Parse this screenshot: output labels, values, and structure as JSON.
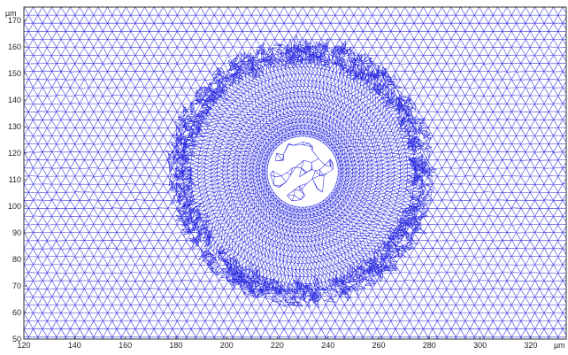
{
  "plot": {
    "unit_label_y": "µm",
    "unit_label_x": "µm",
    "x_ticks": [
      "120",
      "140",
      "160",
      "180",
      "200",
      "220",
      "240",
      "260",
      "280",
      "300",
      "320"
    ],
    "y_ticks": [
      "50",
      "60",
      "70",
      "80",
      "90",
      "100",
      "110",
      "120",
      "130",
      "140",
      "150",
      "160",
      "170"
    ],
    "x_range": [
      120,
      334
    ],
    "y_range": [
      50,
      175
    ],
    "mesh_color": "#2a2ae0",
    "background_color": "#ffffff",
    "hole": {
      "cx": 230,
      "cy": 113,
      "r": 14
    }
  }
}
